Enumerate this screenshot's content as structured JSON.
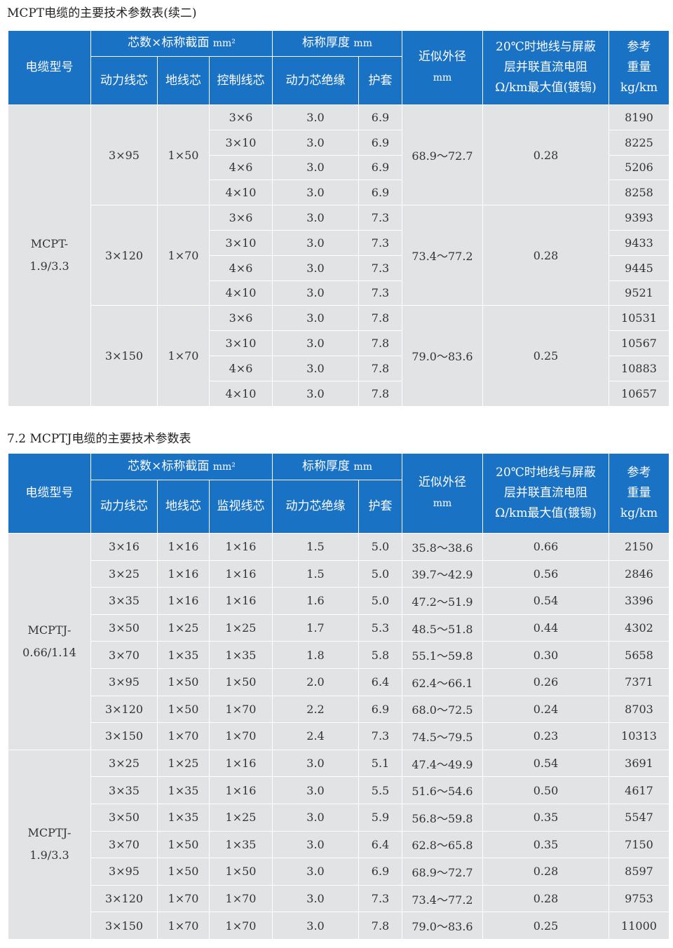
{
  "table1": {
    "caption": "MCPT电缆的主要技术参数表(续二)",
    "header": {
      "model": "电缆型号",
      "core_group": "芯数×标称截面",
      "core_unit": "mm²",
      "core_cols": [
        "动力线芯",
        "地线芯",
        "控制线芯"
      ],
      "thick_group": "标称厚度",
      "thick_unit": "mm",
      "thick_cols": [
        "动力芯绝缘",
        "护套"
      ],
      "diam": "近似外径",
      "diam_unit": "mm",
      "res_lines": [
        "20℃时地线与屏蔽",
        "层并联直流电阻",
        "Ω/km最大值(镀锡)"
      ],
      "weight_lines": [
        "参考",
        "重量",
        "kg/km"
      ]
    },
    "model": [
      "MCPT-",
      "1.9/3.3"
    ],
    "groups": [
      {
        "power": "3×95",
        "ground": "1×50",
        "diameter": "68.9～72.7",
        "resistance": "0.28",
        "rows": [
          {
            "control": "3×6",
            "insul": "3.0",
            "sheath": "6.9",
            "weight": "8190"
          },
          {
            "control": "3×10",
            "insul": "3.0",
            "sheath": "6.9",
            "weight": "8225"
          },
          {
            "control": "4×6",
            "insul": "3.0",
            "sheath": "6.9",
            "weight": "5206"
          },
          {
            "control": "4×10",
            "insul": "3.0",
            "sheath": "6.9",
            "weight": "8258"
          }
        ]
      },
      {
        "power": "3×120",
        "ground": "1×70",
        "diameter": "73.4～77.2",
        "resistance": "0.28",
        "rows": [
          {
            "control": "3×6",
            "insul": "3.0",
            "sheath": "7.3",
            "weight": "9393"
          },
          {
            "control": "3×10",
            "insul": "3.0",
            "sheath": "7.3",
            "weight": "9433"
          },
          {
            "control": "4×6",
            "insul": "3.0",
            "sheath": "7.3",
            "weight": "9445"
          },
          {
            "control": "4×10",
            "insul": "3.0",
            "sheath": "7.3",
            "weight": "9521"
          }
        ]
      },
      {
        "power": "3×150",
        "ground": "1×70",
        "diameter": "79.0～83.6",
        "resistance": "0.25",
        "rows": [
          {
            "control": "3×6",
            "insul": "3.0",
            "sheath": "7.8",
            "weight": "10531"
          },
          {
            "control": "3×10",
            "insul": "3.0",
            "sheath": "7.8",
            "weight": "10567"
          },
          {
            "control": "4×6",
            "insul": "3.0",
            "sheath": "7.8",
            "weight": "10883"
          },
          {
            "control": "4×10",
            "insul": "3.0",
            "sheath": "7.8",
            "weight": "10657"
          }
        ]
      }
    ]
  },
  "table2": {
    "caption": "7.2 MCPTJ电缆的主要技术参数表",
    "header": {
      "model": "电缆型号",
      "core_group": "芯数×标称截面",
      "core_unit": "mm²",
      "core_cols": [
        "动力线芯",
        "地线芯",
        "监视线芯"
      ],
      "thick_group": "标称厚度",
      "thick_unit": "mm",
      "thick_cols": [
        "动力芯绝缘",
        "护套"
      ],
      "diam": "近似外径",
      "diam_unit": "mm",
      "res_lines": [
        "20℃时地线与屏蔽",
        "层并联直流电阻",
        "Ω/km最大值(镀锡)"
      ],
      "weight_lines": [
        "参考",
        "重量",
        "kg/km"
      ]
    },
    "groups": [
      {
        "model": [
          "MCPTJ-",
          "0.66/1.14"
        ],
        "rows": [
          {
            "power": "3×16",
            "ground": "1×16",
            "monitor": "1×16",
            "insul": "1.5",
            "sheath": "5.0",
            "diameter": "35.8～38.6",
            "resistance": "0.66",
            "weight": "2150"
          },
          {
            "power": "3×25",
            "ground": "1×16",
            "monitor": "1×16",
            "insul": "1.5",
            "sheath": "5.0",
            "diameter": "39.7～42.9",
            "resistance": "0.56",
            "weight": "2846"
          },
          {
            "power": "3×35",
            "ground": "1×16",
            "monitor": "1×16",
            "insul": "1.6",
            "sheath": "5.0",
            "diameter": "47.2～51.9",
            "resistance": "0.54",
            "weight": "3396"
          },
          {
            "power": "3×50",
            "ground": "1×25",
            "monitor": "1×25",
            "insul": "1.7",
            "sheath": "5.3",
            "diameter": "48.5～51.8",
            "resistance": "0.44",
            "weight": "4302"
          },
          {
            "power": "3×70",
            "ground": "1×35",
            "monitor": "1×35",
            "insul": "1.8",
            "sheath": "5.8",
            "diameter": "55.1～59.8",
            "resistance": "0.30",
            "weight": "5658"
          },
          {
            "power": "3×95",
            "ground": "1×50",
            "monitor": "1×50",
            "insul": "2.0",
            "sheath": "6.4",
            "diameter": "62.4～66.1",
            "resistance": "0.26",
            "weight": "7371"
          },
          {
            "power": "3×120",
            "ground": "1×50",
            "monitor": "1×70",
            "insul": "2.2",
            "sheath": "6.9",
            "diameter": "68.0～72.5",
            "resistance": "0.24",
            "weight": "8703"
          },
          {
            "power": "3×150",
            "ground": "1×70",
            "monitor": "1×70",
            "insul": "2.4",
            "sheath": "7.3",
            "diameter": "74.5～79.5",
            "resistance": "0.23",
            "weight": "10313"
          }
        ]
      },
      {
        "model": [
          "MCPTJ-",
          "1.9/3.3"
        ],
        "rows": [
          {
            "power": "3×25",
            "ground": "1×25",
            "monitor": "1×16",
            "insul": "3.0",
            "sheath": "5.1",
            "diameter": "47.4～49.9",
            "resistance": "0.54",
            "weight": "3691"
          },
          {
            "power": "3×35",
            "ground": "1×35",
            "monitor": "1×16",
            "insul": "3.0",
            "sheath": "5.5",
            "diameter": "51.6～54.6",
            "resistance": "0.50",
            "weight": "4617"
          },
          {
            "power": "3×50",
            "ground": "1×35",
            "monitor": "1×25",
            "insul": "3.0",
            "sheath": "5.9",
            "diameter": "56.8～59.8",
            "resistance": "0.35",
            "weight": "5547"
          },
          {
            "power": "3×70",
            "ground": "1×50",
            "monitor": "1×35",
            "insul": "3.0",
            "sheath": "6.4",
            "diameter": "62.8～65.8",
            "resistance": "0.35",
            "weight": "7150"
          },
          {
            "power": "3×95",
            "ground": "1×50",
            "monitor": "1×50",
            "insul": "3.0",
            "sheath": "6.9",
            "diameter": "68.9～72.7",
            "resistance": "0.28",
            "weight": "8597"
          },
          {
            "power": "3×120",
            "ground": "1×70",
            "monitor": "1×70",
            "insul": "3.0",
            "sheath": "7.3",
            "diameter": "73.4～77.2",
            "resistance": "0.28",
            "weight": "9753"
          },
          {
            "power": "3×150",
            "ground": "1×70",
            "monitor": "1×70",
            "insul": "3.0",
            "sheath": "7.8",
            "diameter": "79.0～83.6",
            "resistance": "0.25",
            "weight": "11000"
          }
        ]
      }
    ]
  }
}
